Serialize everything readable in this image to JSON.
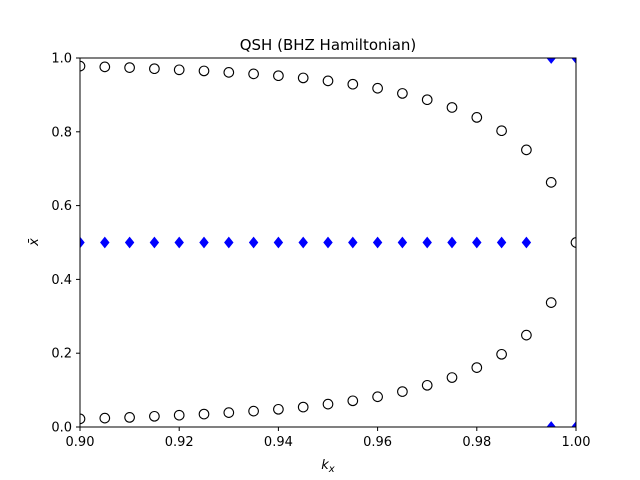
{
  "chart_data": {
    "type": "scatter",
    "title": "QSH (BHZ Hamiltonian)",
    "xlabel": "k",
    "xlabel_sub": "x",
    "ylabel": "x̄",
    "xlim": [
      0.9,
      1.0
    ],
    "ylim": [
      0.0,
      1.0
    ],
    "x_ticks": [
      0.9,
      0.92,
      0.94,
      0.96,
      0.98,
      1.0
    ],
    "x_tick_labels": [
      "0.90",
      "0.92",
      "0.94",
      "0.96",
      "0.98",
      "1.00"
    ],
    "y_ticks": [
      0.0,
      0.2,
      0.4,
      0.6,
      0.8,
      1.0
    ],
    "y_tick_labels": [
      "0.0",
      "0.2",
      "0.4",
      "0.6",
      "0.8",
      "1.0"
    ],
    "grid": false,
    "series": [
      {
        "marker": "circle-open",
        "color": "#000000",
        "points": [
          [
            0.9,
            0.978
          ],
          [
            0.905,
            0.976
          ],
          [
            0.91,
            0.974
          ],
          [
            0.915,
            0.971
          ],
          [
            0.92,
            0.968
          ],
          [
            0.925,
            0.965
          ],
          [
            0.93,
            0.961
          ],
          [
            0.935,
            0.957
          ],
          [
            0.94,
            0.952
          ],
          [
            0.945,
            0.946
          ],
          [
            0.95,
            0.938
          ],
          [
            0.955,
            0.929
          ],
          [
            0.96,
            0.918
          ],
          [
            0.965,
            0.904
          ],
          [
            0.97,
            0.887
          ],
          [
            0.975,
            0.866
          ],
          [
            0.98,
            0.839
          ],
          [
            0.985,
            0.803
          ],
          [
            0.99,
            0.751
          ],
          [
            0.995,
            0.663
          ],
          [
            1.0,
            0.5
          ],
          [
            0.9,
            0.022
          ],
          [
            0.905,
            0.024
          ],
          [
            0.91,
            0.026
          ],
          [
            0.915,
            0.029
          ],
          [
            0.92,
            0.032
          ],
          [
            0.925,
            0.035
          ],
          [
            0.93,
            0.039
          ],
          [
            0.935,
            0.043
          ],
          [
            0.94,
            0.048
          ],
          [
            0.945,
            0.054
          ],
          [
            0.95,
            0.062
          ],
          [
            0.955,
            0.071
          ],
          [
            0.96,
            0.082
          ],
          [
            0.965,
            0.096
          ],
          [
            0.97,
            0.113
          ],
          [
            0.975,
            0.134
          ],
          [
            0.98,
            0.161
          ],
          [
            0.985,
            0.197
          ],
          [
            0.99,
            0.249
          ],
          [
            0.995,
            0.337
          ]
        ]
      },
      {
        "marker": "diamond-filled",
        "color": "#0000ff",
        "points": [
          [
            0.9,
            0.5
          ],
          [
            0.905,
            0.5
          ],
          [
            0.91,
            0.5
          ],
          [
            0.915,
            0.5
          ],
          [
            0.92,
            0.5
          ],
          [
            0.925,
            0.5
          ],
          [
            0.93,
            0.5
          ],
          [
            0.935,
            0.5
          ],
          [
            0.94,
            0.5
          ],
          [
            0.945,
            0.5
          ],
          [
            0.95,
            0.5
          ],
          [
            0.955,
            0.5
          ],
          [
            0.96,
            0.5
          ],
          [
            0.965,
            0.5
          ],
          [
            0.97,
            0.5
          ],
          [
            0.975,
            0.5
          ],
          [
            0.98,
            0.5
          ],
          [
            0.985,
            0.5
          ],
          [
            0.99,
            0.5
          ],
          [
            0.995,
            1.0
          ],
          [
            0.995,
            0.0
          ],
          [
            1.0,
            1.0
          ],
          [
            1.0,
            0.0
          ]
        ]
      }
    ]
  }
}
